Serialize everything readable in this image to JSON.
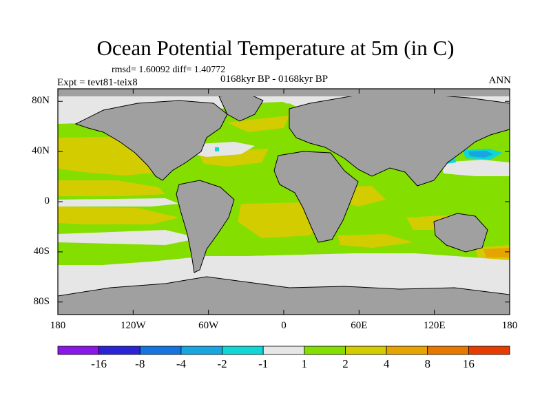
{
  "title": "Ocean Potential Temperature at 5m (in C)",
  "stats": "rmsd= 1.60092 diff= 1.40772",
  "experiment": "Expt = tevt81-teix8",
  "period": "0168kyr BP - 0168kyr BP",
  "season": "ANN",
  "axes": {
    "lat_ticks": [
      {
        "label": "80N",
        "lat": 80
      },
      {
        "label": "40N",
        "lat": 40
      },
      {
        "label": "0",
        "lat": 0
      },
      {
        "label": "40S",
        "lat": -40
      },
      {
        "label": "80S",
        "lat": -80
      }
    ],
    "lon_ticks": [
      {
        "label": "180",
        "lon": -180
      },
      {
        "label": "120W",
        "lon": -120
      },
      {
        "label": "60W",
        "lon": -60
      },
      {
        "label": "0",
        "lon": 0
      },
      {
        "label": "60E",
        "lon": 60
      },
      {
        "label": "120E",
        "lon": 120
      },
      {
        "label": "180",
        "lon": 180
      }
    ]
  },
  "colorbar": {
    "colors": [
      "#8a16e8",
      "#2a24d6",
      "#1474e0",
      "#18a6e0",
      "#10d6d6",
      "#e6e6e6",
      "#84de00",
      "#d2cc00",
      "#e6a400",
      "#e67800",
      "#e63c00"
    ],
    "labels": [
      "-16",
      "-8",
      "-4",
      "-2",
      "-1",
      "1",
      "2",
      "4",
      "8",
      "16"
    ]
  },
  "palette": {
    "land": "#a0a0a0",
    "near_zero": "#e6e6e6",
    "green": "#84de00",
    "olive": "#d2cc00",
    "orange": "#e6a400",
    "cyan": "#10d6d6",
    "blue": "#18a6e0"
  }
}
